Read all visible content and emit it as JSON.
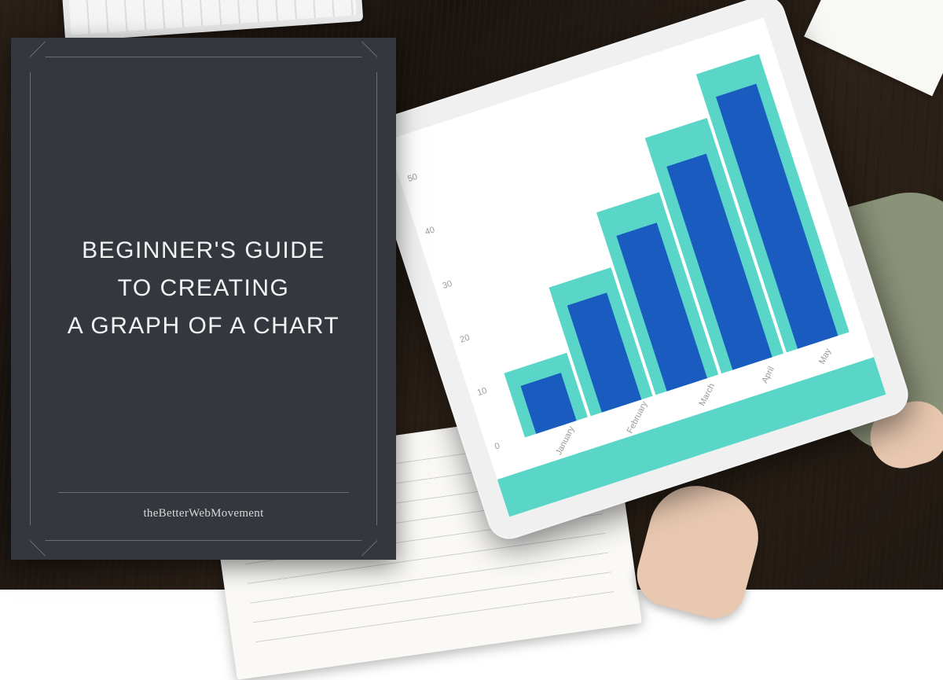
{
  "title_card": {
    "line1": "BEGINNER'S GUIDE",
    "line2": "TO CREATING",
    "line3": "A GRAPH OF A CHART",
    "brand": "theBetterWebMovement",
    "background_color": "#34373e",
    "border_color": "#6a6d74",
    "text_color": "#f2f2f2",
    "title_fontsize": 30,
    "brand_fontsize": 15
  },
  "chart": {
    "type": "bar",
    "categories": [
      "January",
      "February",
      "March",
      "April",
      "May"
    ],
    "back_series": {
      "color": "#5ad6c8",
      "values": [
        12,
        24,
        34,
        44,
        52
      ]
    },
    "front_series": {
      "color": "#1a5bbf",
      "values": [
        9,
        20,
        29,
        38,
        47
      ]
    },
    "ylim": [
      0,
      55
    ],
    "yticks": [
      0,
      10,
      20,
      30,
      40,
      50
    ],
    "label_color": "#999999",
    "label_fontsize": 11,
    "background_color": "#ffffff",
    "footer_band_color": "#5ad6c8",
    "bar_group_width": 1.0,
    "front_bar_width": 0.64
  },
  "scene": {
    "desk_color": "#1f1812",
    "tablet_bezel_color": "#f0f0f0",
    "keyboard_color": "#e8e8e8",
    "notebook_color": "#faf9f6",
    "sleeve_color": "#8a9278",
    "skin_color": "#e8c8b0",
    "tablet_rotation_deg": -18
  }
}
